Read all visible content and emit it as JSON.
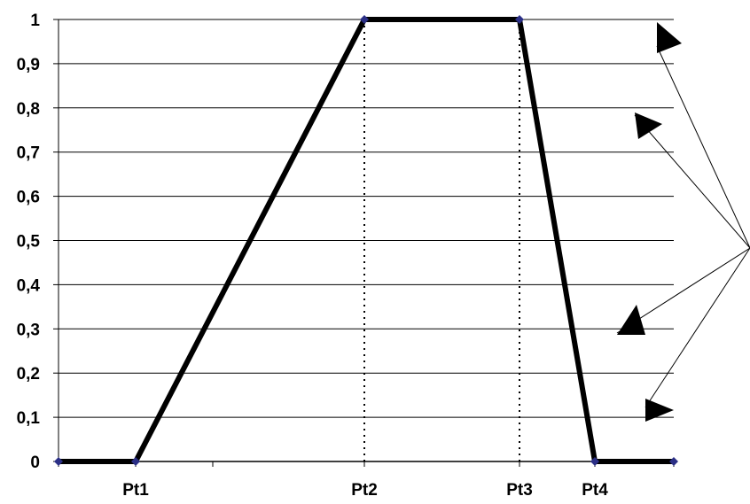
{
  "chart_data": {
    "type": "line",
    "title": "",
    "xlabel": "",
    "ylabel": "",
    "ylim": [
      0,
      1
    ],
    "y_ticks": [
      "0",
      "0,1",
      "0,2",
      "0,3",
      "0,4",
      "0,5",
      "0,6",
      "0,7",
      "0,8",
      "0,9",
      "1"
    ],
    "x_categories": [
      "",
      "Pt1",
      "",
      "Pt2",
      "Pt3",
      "Pt4",
      ""
    ],
    "series": [
      {
        "values": [
          0,
          0,
          1,
          1,
          0,
          0
        ]
      }
    ],
    "grid": true,
    "legend": "none",
    "colors": {
      "line": "#000000",
      "marker": "#2b2f86",
      "grid": "#000000"
    }
  }
}
